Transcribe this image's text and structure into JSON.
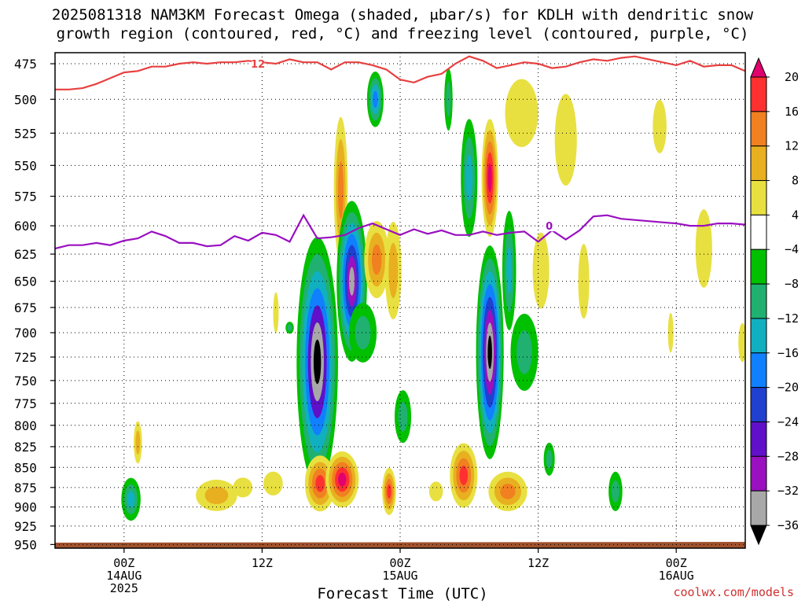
{
  "title": {
    "line1_prefix": "2025081318 NAM3KM Forecast Omega (shaded, ",
    "line1_unit": "μbar/s) for KDLH with dendritic snow",
    "line2": "growth region (contoured, red, °C) and freezing level (contoured, purple, °C)"
  },
  "footer": {
    "credit": "coolwx.com/models"
  },
  "colors": {
    "dendritic_contour": "#e84040",
    "freezing_contour": "#9a10c0",
    "ground": "#a0522d",
    "gridline": "#000000"
  },
  "chart_data": {
    "type": "heatmap",
    "xlabel": "Forecast Time (UTC)",
    "ylabel": "",
    "ylim": [
      480,
      955
    ],
    "y_reversed": true,
    "y_ticks": [
      475,
      500,
      525,
      550,
      575,
      600,
      625,
      650,
      675,
      700,
      725,
      750,
      775,
      800,
      825,
      850,
      875,
      900,
      925,
      950
    ],
    "x_range_hours": [
      -5,
      45
    ],
    "x_ticks": [
      {
        "hour": 0,
        "label": "00Z",
        "sub": "14AUG",
        "sub2": "2025"
      },
      {
        "hour": 10,
        "label": "12Z",
        "sub": "",
        "sub2": ""
      },
      {
        "hour": 20,
        "label": "00Z",
        "sub": "15AUG",
        "sub2": ""
      },
      {
        "hour": 30,
        "label": "12Z",
        "sub": "",
        "sub2": ""
      },
      {
        "hour": 40,
        "label": "00Z",
        "sub": "16AUG",
        "sub2": ""
      }
    ],
    "colorbar": {
      "labels": [
        "20",
        "16",
        "12",
        "8",
        "4",
        "−4",
        "−8",
        "−12",
        "−16",
        "−20",
        "−24",
        "−28",
        "−32",
        "−36"
      ],
      "bins": [
        {
          "color": "#e0006e"
        },
        {
          "color": "#ff3030"
        },
        {
          "color": "#f08020"
        },
        {
          "color": "#e8b020"
        },
        {
          "color": "#e8e040"
        },
        {
          "color": "#ffffff"
        },
        {
          "color": "#00c000"
        },
        {
          "color": "#20b070"
        },
        {
          "color": "#10b0c0"
        },
        {
          "color": "#1080ff"
        },
        {
          "color": "#2040d0"
        },
        {
          "color": "#6010c8"
        },
        {
          "color": "#9a10c0"
        },
        {
          "color": "#a8a8a8"
        },
        {
          "color": "#000000"
        }
      ]
    },
    "omega_features": [
      {
        "t": 14.0,
        "p": 730,
        "dt": 1.5,
        "dp": 260,
        "values": [
          -4,
          -8,
          -12,
          -16,
          -24,
          -32,
          -36
        ]
      },
      {
        "t": 15.7,
        "p": 570,
        "dt": 0.5,
        "dp": 120,
        "values": [
          4,
          8,
          12
        ]
      },
      {
        "t": 16.5,
        "p": 650,
        "dt": 1.1,
        "dp": 150,
        "values": [
          -4,
          -8,
          -12,
          -16,
          -20,
          -28,
          -32
        ]
      },
      {
        "t": 18.2,
        "p": 500,
        "dt": 0.6,
        "dp": 40,
        "values": [
          -4,
          -8,
          -12,
          -16
        ]
      },
      {
        "t": 17.3,
        "p": 700,
        "dt": 1.0,
        "dp": 60,
        "values": [
          -4,
          -8
        ]
      },
      {
        "t": 18.3,
        "p": 630,
        "dt": 0.9,
        "dp": 70,
        "values": [
          4,
          8,
          12
        ]
      },
      {
        "t": 19.5,
        "p": 640,
        "dt": 0.6,
        "dp": 90,
        "values": [
          4,
          8
        ]
      },
      {
        "t": 20.2,
        "p": 790,
        "dt": 0.6,
        "dp": 60,
        "values": [
          -4,
          -8
        ]
      },
      {
        "t": 14.2,
        "p": 870,
        "dt": 1.1,
        "dp": 70,
        "values": [
          4,
          8,
          12,
          16
        ]
      },
      {
        "t": 15.8,
        "p": 865,
        "dt": 1.2,
        "dp": 70,
        "values": [
          4,
          8,
          12,
          16,
          20
        ]
      },
      {
        "t": 19.2,
        "p": 880,
        "dt": 0.5,
        "dp": 60,
        "values": [
          4,
          8,
          12,
          16
        ]
      },
      {
        "t": 22.6,
        "p": 880,
        "dt": 0.5,
        "dp": 25,
        "values": [
          4
        ]
      },
      {
        "t": 23.5,
        "p": 500,
        "dt": 0.3,
        "dp": 45,
        "values": [
          -4,
          -8
        ]
      },
      {
        "t": 25.0,
        "p": 560,
        "dt": 0.6,
        "dp": 95,
        "values": [
          -4,
          -8,
          -12
        ]
      },
      {
        "t": 24.6,
        "p": 860,
        "dt": 1.0,
        "dp": 80,
        "values": [
          4,
          8,
          12,
          16
        ]
      },
      {
        "t": 26.5,
        "p": 560,
        "dt": 0.6,
        "dp": 95,
        "values": [
          4,
          8,
          12,
          16,
          20
        ]
      },
      {
        "t": 26.5,
        "p": 720,
        "dt": 1.0,
        "dp": 220,
        "values": [
          -4,
          -8,
          -12,
          -16,
          -20,
          -28,
          -32,
          -36
        ]
      },
      {
        "t": 27.9,
        "p": 640,
        "dt": 0.5,
        "dp": 110,
        "values": [
          -4,
          -8,
          -12
        ]
      },
      {
        "t": 29.0,
        "p": 720,
        "dt": 1.0,
        "dp": 80,
        "values": [
          -4,
          -8
        ]
      },
      {
        "t": 27.8,
        "p": 880,
        "dt": 1.4,
        "dp": 50,
        "values": [
          4,
          8,
          12
        ]
      },
      {
        "t": 28.8,
        "p": 510,
        "dt": 1.2,
        "dp": 50,
        "values": [
          4
        ]
      },
      {
        "t": 30.2,
        "p": 640,
        "dt": 0.6,
        "dp": 70,
        "values": [
          4
        ]
      },
      {
        "t": 30.8,
        "p": 840,
        "dt": 0.4,
        "dp": 40,
        "values": [
          -4,
          -8
        ]
      },
      {
        "t": 32.0,
        "p": 530,
        "dt": 0.8,
        "dp": 70,
        "values": [
          4
        ]
      },
      {
        "t": 35.6,
        "p": 880,
        "dt": 0.5,
        "dp": 50,
        "values": [
          -4,
          -8
        ]
      },
      {
        "t": 33.3,
        "p": 650,
        "dt": 0.4,
        "dp": 70,
        "values": [
          4
        ]
      },
      {
        "t": 38.8,
        "p": 520,
        "dt": 0.5,
        "dp": 40,
        "values": [
          4
        ]
      },
      {
        "t": 39.6,
        "p": 700,
        "dt": 0.2,
        "dp": 40,
        "values": [
          4
        ]
      },
      {
        "t": 42.0,
        "p": 620,
        "dt": 0.6,
        "dp": 70,
        "values": [
          4
        ]
      },
      {
        "t": 44.8,
        "p": 710,
        "dt": 0.3,
        "dp": 40,
        "values": [
          4
        ]
      },
      {
        "t": 0.5,
        "p": 890,
        "dt": 0.7,
        "dp": 55,
        "values": [
          -4,
          -8,
          -12
        ]
      },
      {
        "t": 1.0,
        "p": 820,
        "dt": 0.3,
        "dp": 50,
        "values": [
          4,
          8
        ]
      },
      {
        "t": 6.7,
        "p": 885,
        "dt": 1.5,
        "dp": 40,
        "values": [
          4,
          8
        ]
      },
      {
        "t": 8.6,
        "p": 875,
        "dt": 0.7,
        "dp": 25,
        "values": [
          4
        ]
      },
      {
        "t": 10.8,
        "p": 870,
        "dt": 0.7,
        "dp": 30,
        "values": [
          4
        ]
      },
      {
        "t": 11.0,
        "p": 680,
        "dt": 0.2,
        "dp": 40,
        "values": [
          4
        ]
      },
      {
        "t": 12.0,
        "p": 695,
        "dt": 0.3,
        "dp": 12,
        "values": [
          -4,
          -8
        ]
      }
    ],
    "series": [
      {
        "name": "12",
        "label_position": [
          9.7,
          475
        ],
        "x": [
          -5,
          -4,
          -3,
          -2,
          -1,
          0,
          1,
          2,
          3,
          4,
          5,
          6,
          7,
          8,
          9,
          10,
          11,
          12,
          13,
          14,
          15,
          16,
          17,
          18,
          19,
          20,
          21,
          22,
          23,
          24,
          25,
          26,
          27,
          28,
          29,
          30,
          31,
          32,
          33,
          34,
          35,
          36,
          37,
          38,
          39,
          40,
          41,
          42,
          43,
          44,
          45
        ],
        "y": [
          493,
          493,
          492,
          489,
          485,
          481,
          480,
          477,
          477,
          475,
          474,
          475,
          474,
          474,
          473,
          474,
          475,
          472,
          474,
          474,
          479,
          474,
          474,
          476,
          479,
          486,
          488,
          484,
          482,
          475,
          470,
          473,
          478,
          476,
          474,
          475,
          478,
          477,
          474,
          472,
          473,
          471,
          470,
          472,
          474,
          476,
          473,
          477,
          476,
          476,
          480
        ]
      },
      {
        "name": "0",
        "label_position": [
          30.8,
          600
        ],
        "x": [
          -5,
          -4,
          -3,
          -2,
          -1,
          0,
          1,
          2,
          3,
          4,
          5,
          6,
          7,
          8,
          9,
          10,
          11,
          12,
          13,
          14,
          15,
          16,
          17,
          18,
          19,
          20,
          21,
          22,
          23,
          24,
          25,
          26,
          27,
          28,
          29,
          30,
          31,
          32,
          33,
          34,
          35,
          36,
          37,
          38,
          39,
          40,
          41,
          42,
          43,
          44,
          45
        ],
        "y": [
          620,
          617,
          617,
          615,
          617,
          613,
          611,
          605,
          609,
          615,
          615,
          618,
          617,
          609,
          613,
          606,
          608,
          614,
          591,
          611,
          610,
          608,
          602,
          598,
          603,
          608,
          603,
          607,
          604,
          608,
          608,
          605,
          608,
          606,
          605,
          614,
          604,
          612,
          604,
          592,
          591,
          594,
          595,
          596,
          597,
          598,
          600,
          600,
          598,
          598,
          599
        ]
      }
    ]
  }
}
